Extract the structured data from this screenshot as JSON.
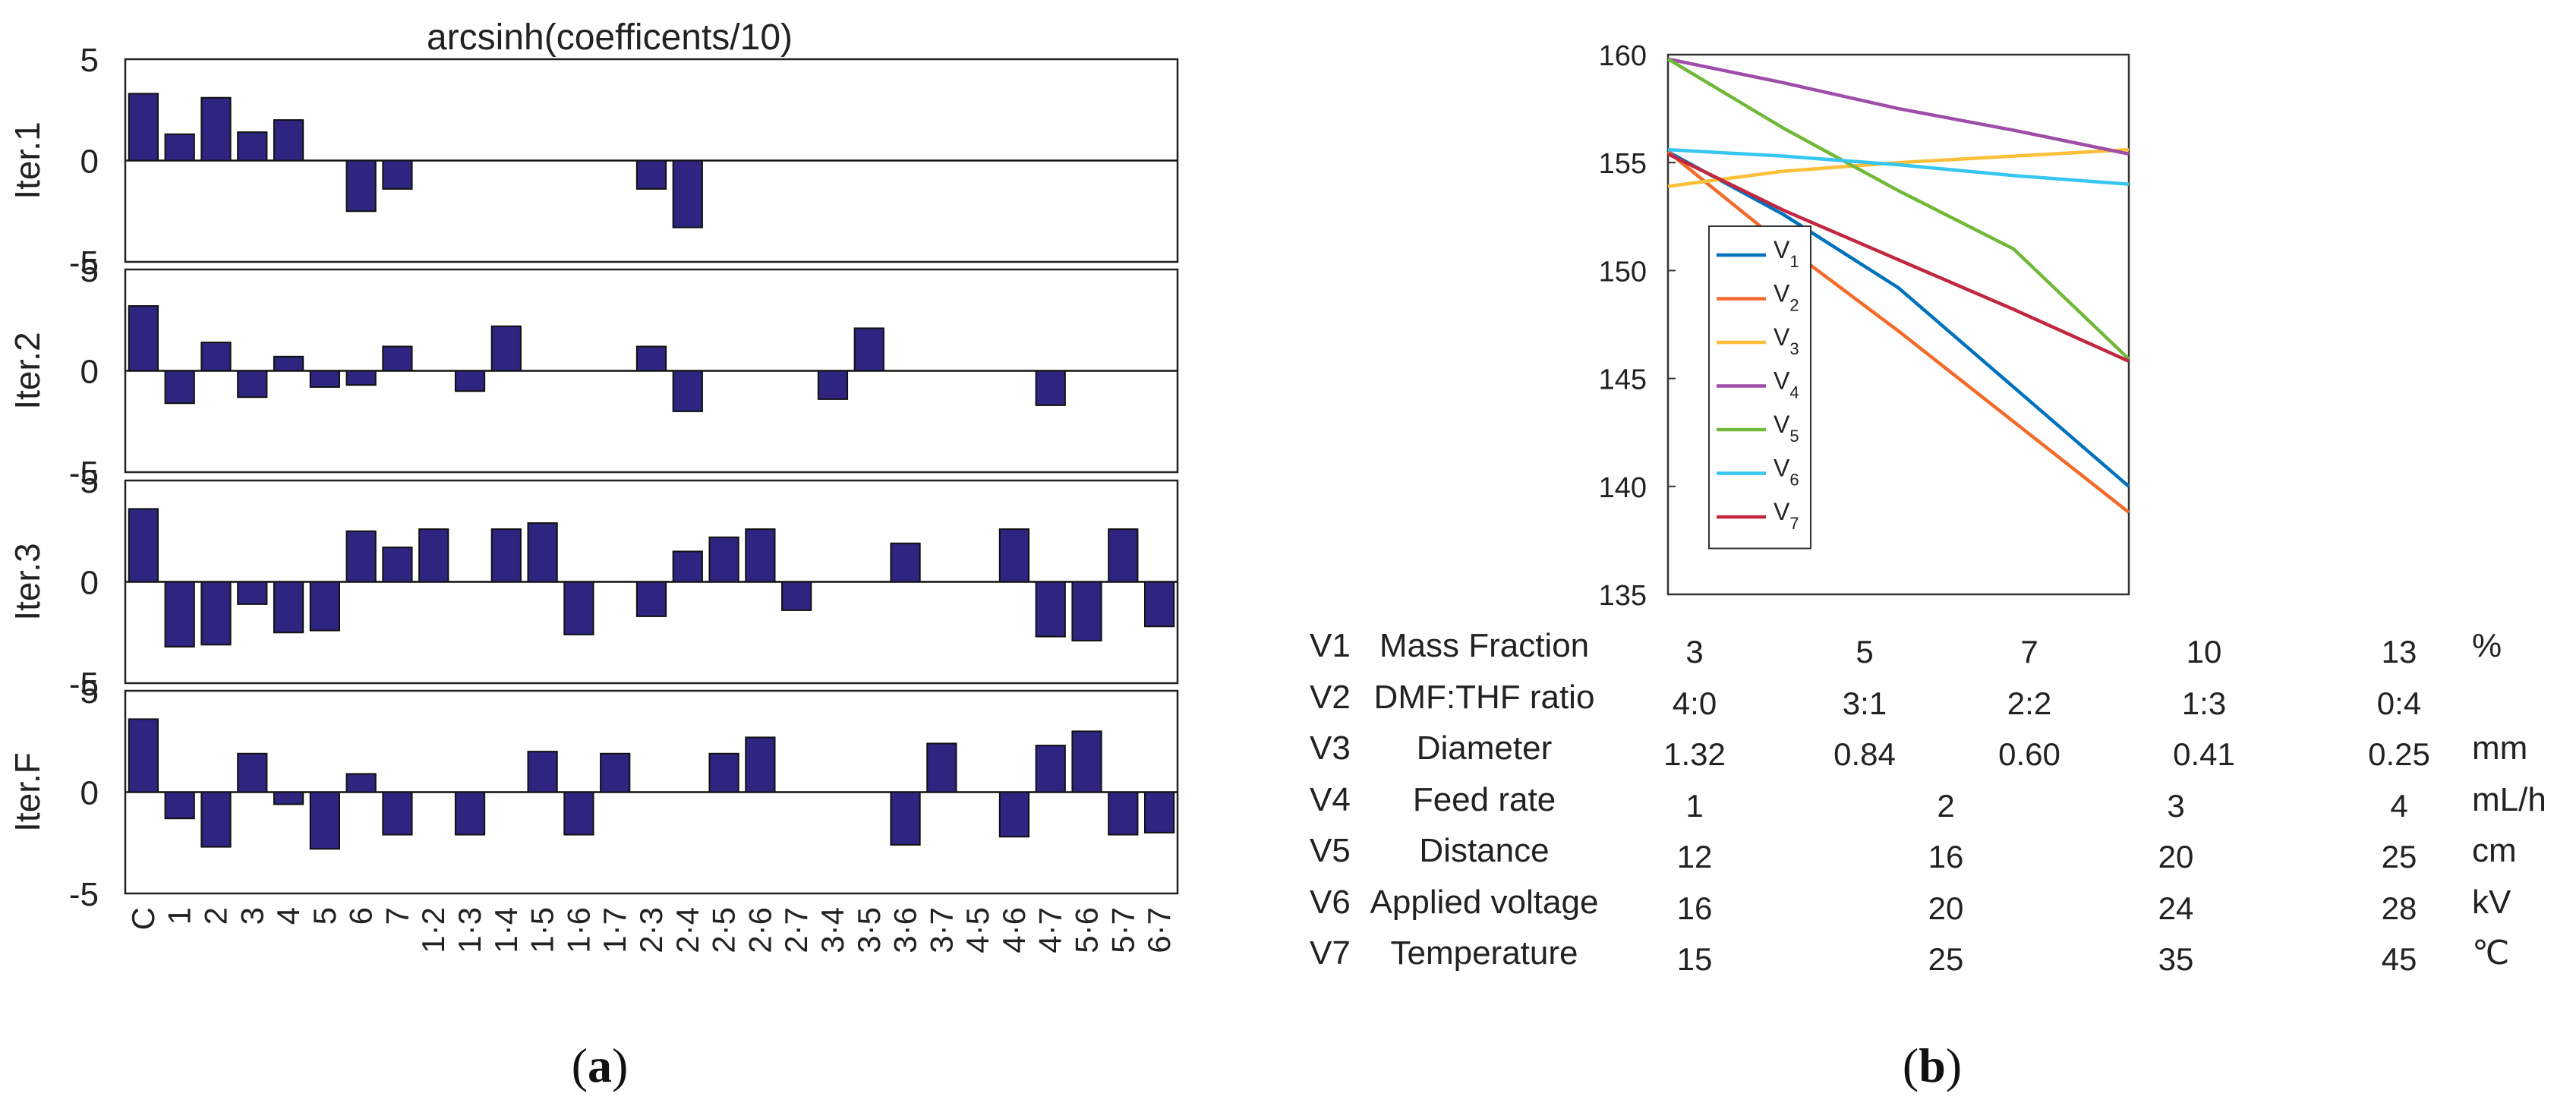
{
  "panel_a": {
    "caption_letter": "a",
    "caption_open": "(",
    "caption_close": ")",
    "chart_title": "arcsinh(coefficents/10)"
  },
  "panel_b": {
    "caption_letter": "b",
    "caption_open": "(",
    "caption_close": ")",
    "table": [
      {
        "var": "V1",
        "name": "Mass Fraction",
        "levels": [
          "3",
          "5",
          "7",
          "10",
          "13"
        ],
        "unit": "%"
      },
      {
        "var": "V2",
        "name": "DMF:THF ratio",
        "levels": [
          "4:0",
          "3:1",
          "2:2",
          "1:3",
          "0:4"
        ],
        "unit": ""
      },
      {
        "var": "V3",
        "name": "Diameter",
        "levels": [
          "1.32",
          "0.84",
          "0.60",
          "0.41",
          "0.25"
        ],
        "unit": "mm"
      },
      {
        "var": "V4",
        "name": "Feed rate",
        "levels": [
          "1",
          "2",
          "3",
          "4"
        ],
        "unit": "mL/h"
      },
      {
        "var": "V5",
        "name": "Distance",
        "levels": [
          "12",
          "16",
          "20",
          "25"
        ],
        "unit": "cm"
      },
      {
        "var": "V6",
        "name": "Applied voltage",
        "levels": [
          "16",
          "20",
          "24",
          "28"
        ],
        "unit": "kV"
      },
      {
        "var": "V7",
        "name": "Temperature",
        "levels": [
          "15",
          "25",
          "35",
          "45"
        ],
        "unit": "℃"
      }
    ]
  },
  "colors": {
    "bar_fill": "#2e2580",
    "V1": "#0072bd",
    "V2": "#f26b2b",
    "V3": "#fbbf3a",
    "V4": "#9e4ea8",
    "V5": "#71b83a",
    "V6": "#36c6ef",
    "V7": "#c1273f"
  },
  "chart_data": [
    {
      "type": "bar",
      "title": "arcsinh(coefficents/10)",
      "categories": [
        "C",
        "1",
        "2",
        "3",
        "4",
        "5",
        "6",
        "7",
        "1·2",
        "1·3",
        "1·4",
        "1·5",
        "1·6",
        "1·7",
        "2·3",
        "2·4",
        "2·5",
        "2·6",
        "2·7",
        "3·4",
        "3·5",
        "3·6",
        "3·7",
        "4·5",
        "4·6",
        "4·7",
        "5·6",
        "5·7",
        "6·7"
      ],
      "ylim": [
        -5,
        5
      ],
      "yticks": [
        5,
        0,
        -5
      ],
      "series": [
        {
          "name": "Iter.1",
          "values": [
            3.3,
            1.3,
            3.1,
            1.4,
            2.0,
            0,
            -2.5,
            -1.4,
            0,
            0,
            0,
            0,
            0,
            0,
            -1.4,
            -3.3,
            0,
            0,
            0,
            0,
            0,
            0,
            0,
            0,
            0,
            0,
            0,
            0,
            0
          ]
        },
        {
          "name": "Iter.2",
          "values": [
            3.2,
            -1.6,
            1.4,
            -1.3,
            0.7,
            -0.8,
            -0.7,
            1.2,
            0,
            -1.0,
            2.2,
            0,
            0,
            0,
            1.2,
            -2.0,
            0,
            0,
            0,
            -1.4,
            2.1,
            0,
            0,
            0,
            0,
            -1.7,
            0,
            0,
            0
          ]
        },
        {
          "name": "Iter.3",
          "values": [
            3.6,
            -3.2,
            -3.1,
            -1.1,
            -2.5,
            -2.4,
            2.5,
            1.7,
            2.6,
            0,
            2.6,
            2.9,
            -2.6,
            0,
            -1.7,
            1.5,
            2.2,
            2.6,
            -1.4,
            0,
            0,
            1.9,
            0,
            0,
            2.6,
            -2.7,
            -2.9,
            2.6,
            -2.2
          ]
        },
        {
          "name": "Iter.F",
          "values": [
            3.6,
            -1.3,
            -2.7,
            1.9,
            -0.6,
            -2.8,
            0.9,
            -2.1,
            0,
            -2.1,
            0,
            2.0,
            -2.1,
            1.9,
            0,
            0,
            1.9,
            2.7,
            0,
            0,
            0,
            -2.6,
            2.4,
            0,
            -2.2,
            2.3,
            3.0,
            -2.1,
            -2.0
          ]
        }
      ]
    },
    {
      "type": "line",
      "title": "",
      "xlabel": "",
      "ylabel": "",
      "x": [
        1,
        2,
        3,
        4,
        5
      ],
      "ylim": [
        135,
        160
      ],
      "yticks": [
        160,
        155,
        150,
        145,
        140,
        135
      ],
      "legend": "inside upper-left",
      "series": [
        {
          "name": "V",
          "sub": "1",
          "values": [
            155.5,
            152.6,
            149.2,
            144.6,
            140.0
          ]
        },
        {
          "name": "V",
          "sub": "2",
          "values": [
            155.5,
            151.2,
            147.2,
            143.0,
            138.8
          ]
        },
        {
          "name": "V",
          "sub": "3",
          "values": [
            153.9,
            154.6,
            155.0,
            155.3,
            155.6
          ]
        },
        {
          "name": "V",
          "sub": "4",
          "values": [
            159.8,
            158.7,
            157.5,
            156.5,
            155.4
          ]
        },
        {
          "name": "V",
          "sub": "5",
          "values": [
            159.8,
            156.6,
            153.7,
            151.0,
            145.9
          ]
        },
        {
          "name": "V",
          "sub": "6",
          "values": [
            155.6,
            155.3,
            154.9,
            154.4,
            154.0
          ]
        },
        {
          "name": "V",
          "sub": "7",
          "values": [
            155.4,
            152.8,
            150.5,
            148.2,
            145.8
          ]
        }
      ]
    }
  ]
}
